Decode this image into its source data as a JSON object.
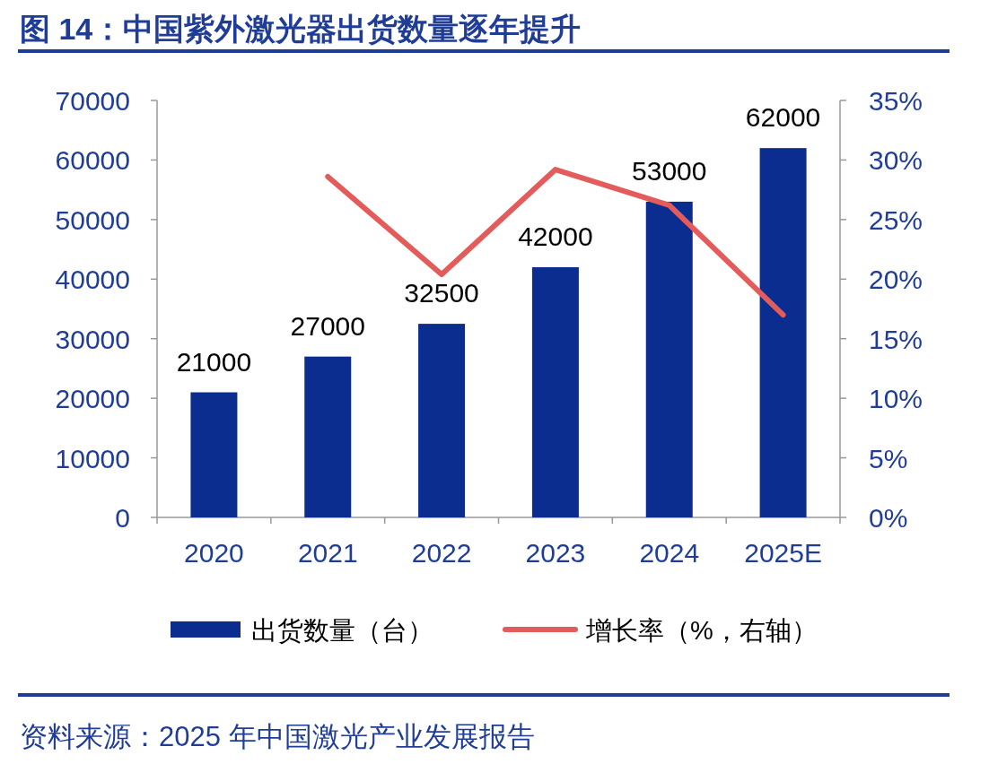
{
  "chart_data": {
    "type": "bar",
    "title": "图 14：中国紫外激光器出货数量逐年提升",
    "categories": [
      "2020",
      "2021",
      "2022",
      "2023",
      "2024",
      "2025E"
    ],
    "series": [
      {
        "name": "出货数量（台）",
        "color": "#0a2d8f",
        "values": [
          21000,
          27000,
          32500,
          42000,
          53000,
          62000
        ],
        "value_labels": [
          "21000",
          "27000",
          "32500",
          "42000",
          "53000",
          "62000"
        ]
      },
      {
        "name": "增长率（%，右轴）",
        "type": "line",
        "axis": "y2",
        "color": "#e35b5b",
        "values": [
          null,
          28.6,
          20.4,
          29.2,
          26.2,
          17.0
        ]
      }
    ],
    "ylim": [
      0,
      70000
    ],
    "yticks": [
      0,
      10000,
      20000,
      30000,
      40000,
      50000,
      60000,
      70000
    ],
    "y2lim": [
      0,
      35
    ],
    "y2ticks": [
      {
        "value": 0,
        "label": "0%"
      },
      {
        "value": 5,
        "label": "5%"
      },
      {
        "value": 10,
        "label": "10%"
      },
      {
        "value": 15,
        "label": "15%"
      },
      {
        "value": 20,
        "label": "20%"
      },
      {
        "value": 25,
        "label": "25%"
      },
      {
        "value": 30,
        "label": "30%"
      },
      {
        "value": 35,
        "label": "35%"
      }
    ],
    "legend": "bottom",
    "grid": false,
    "marker": "none",
    "line_style": "solid",
    "annotations": [
      "资料来源：2025 年中国激光产业发展报告"
    ]
  }
}
